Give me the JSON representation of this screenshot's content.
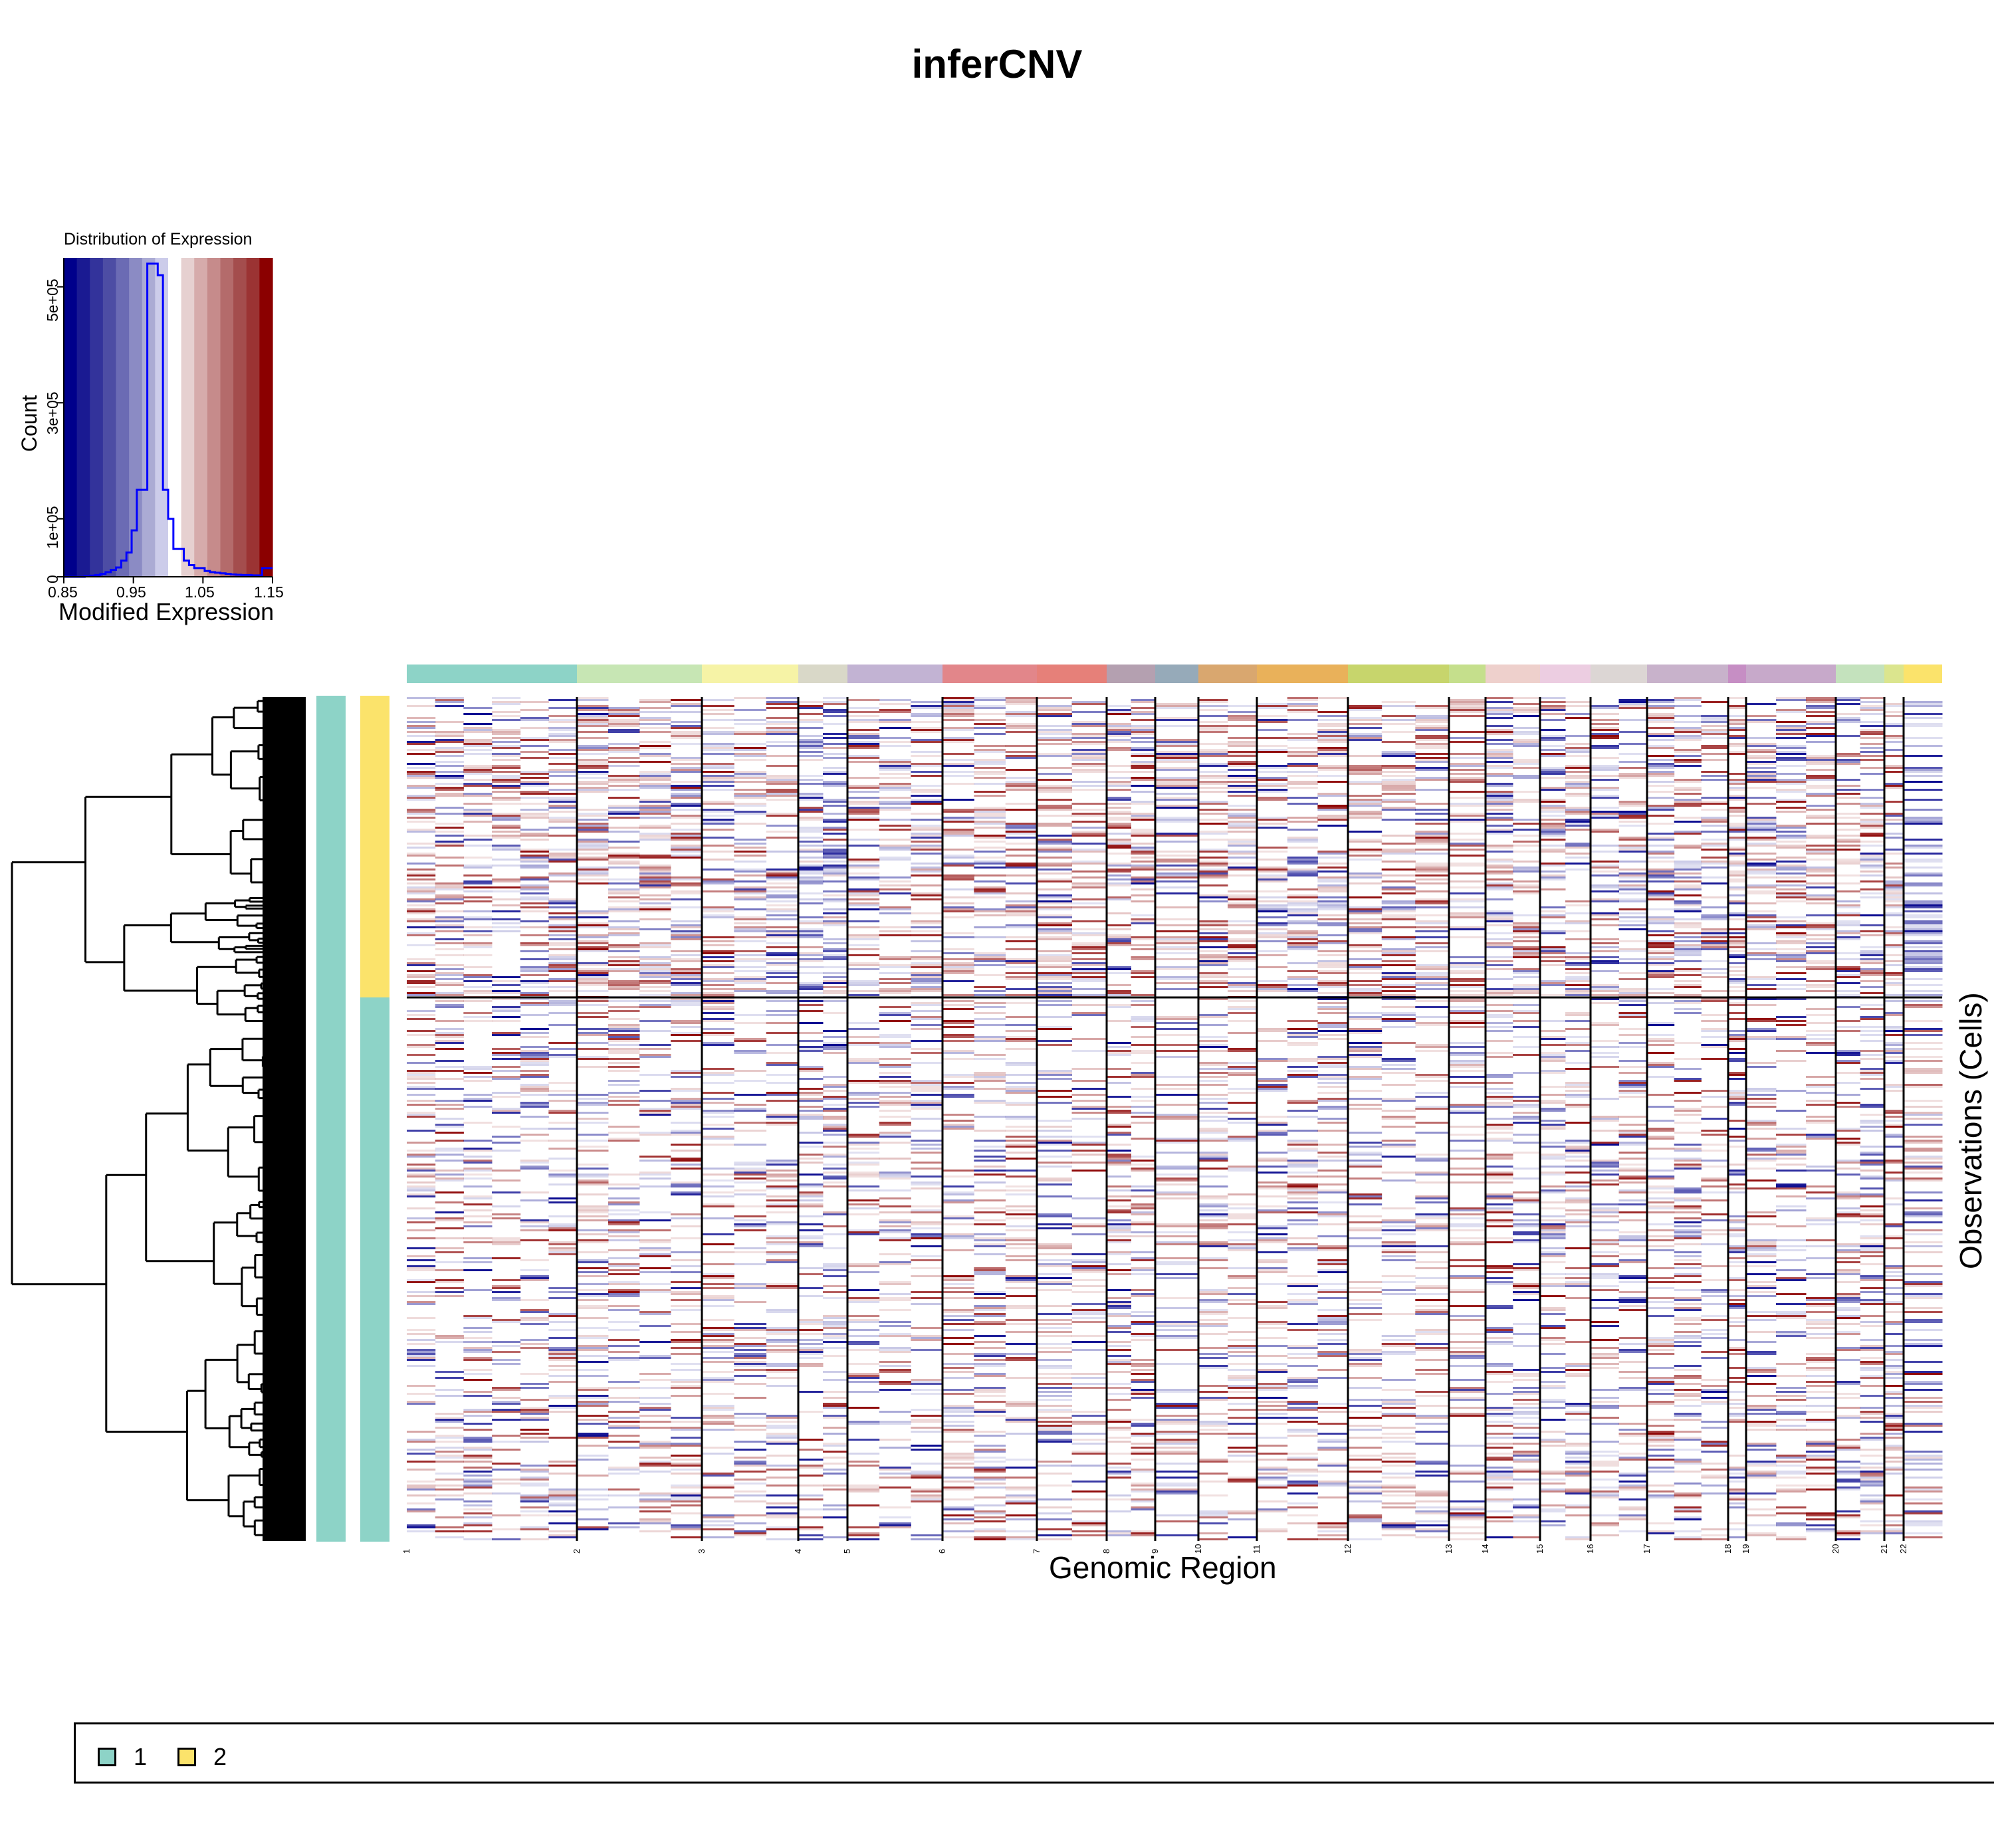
{
  "title": "inferCNV",
  "histogram": {
    "title": "Distribution of Expression",
    "xlabel": "Modified Expression",
    "ylabel": "Count",
    "x_ticks": [
      "0.85",
      "0.95",
      "1.05",
      "1.15"
    ],
    "y_ticks": [
      "0",
      "1e+05",
      "3e+05",
      "5e+05"
    ],
    "colors": [
      "#00008b",
      "#1a1a92",
      "#33339b",
      "#4d4da4",
      "#6b6bb4",
      "#8b8bc4",
      "#ababd4",
      "#ccccea",
      "#ffffff",
      "#e6d0d0",
      "#d6abab",
      "#c68b8b",
      "#b46b6b",
      "#a44d4d",
      "#9b3333",
      "#8b0000"
    ]
  },
  "heatmap": {
    "xlabel": "Genomic Region",
    "ylabel": "Observations (Cells)",
    "chromosomes": [
      "1",
      "2",
      "3",
      "4",
      "5",
      "6",
      "7",
      "8",
      "9",
      "10",
      "11",
      "12",
      "13",
      "14",
      "15",
      "16",
      "17",
      "18",
      "19",
      "20",
      "21",
      "22"
    ],
    "chromosome_colors": [
      "#8dd3c7",
      "#c7e6b4",
      "#f6f3a6",
      "#d9d8c8",
      "#c2b3d3",
      "#e2868a",
      "#e68079",
      "#b4a0b0",
      "#96aab9",
      "#d9a76f",
      "#e9b15a",
      "#c7d56c",
      "#c5df8c",
      "#eed0cc",
      "#eccde1",
      "#dcd6d4",
      "#c8b2cb",
      "#c68ec4",
      "#c7a9ca",
      "#c4e2bd",
      "#dbe58e",
      "#fbe36b"
    ]
  },
  "legend": {
    "groups": [
      {
        "label": "1",
        "color": "#8dd3c7"
      },
      {
        "label": "2",
        "color": "#fbe36b"
      }
    ]
  },
  "chart_data": [
    {
      "type": "bar",
      "title": "Distribution of Expression",
      "xlabel": "Modified Expression",
      "ylabel": "Count",
      "xlim": [
        0.85,
        1.15
      ],
      "ylim": [
        0,
        550000
      ],
      "bins": [
        0.85,
        0.8575,
        0.865,
        0.8725,
        0.88,
        0.8875,
        0.895,
        0.9025,
        0.91,
        0.9175,
        0.925,
        0.9325,
        0.94,
        0.9475,
        0.955,
        0.9625,
        0.97,
        0.9775,
        0.985,
        0.9925,
        1.0,
        1.0075,
        1.015,
        1.0225,
        1.03,
        1.0375,
        1.045,
        1.0525,
        1.06,
        1.0675,
        1.075,
        1.0825,
        1.09,
        1.0975,
        1.105,
        1.1125,
        1.12,
        1.1275,
        1.135,
        1.1425
      ],
      "values": [
        0,
        0,
        0,
        0,
        1000,
        2000,
        3000,
        5000,
        8000,
        12000,
        16000,
        28000,
        42000,
        80000,
        150000,
        150000,
        540000,
        540000,
        520000,
        150000,
        100000,
        48000,
        48000,
        28000,
        20000,
        15000,
        15000,
        10000,
        8000,
        7000,
        6000,
        5000,
        4000,
        3500,
        3000,
        3000,
        2500,
        2500,
        15000,
        15000
      ]
    },
    {
      "type": "heatmap",
      "xlabel": "Genomic Region",
      "ylabel": "Observations (Cells)",
      "x_categories": [
        "1",
        "2",
        "3",
        "4",
        "5",
        "6",
        "7",
        "8",
        "9",
        "10",
        "11",
        "12",
        "13",
        "14",
        "15",
        "16",
        "17",
        "18",
        "19",
        "20",
        "21",
        "22"
      ],
      "groups": [
        "1",
        "2"
      ]
    }
  ]
}
